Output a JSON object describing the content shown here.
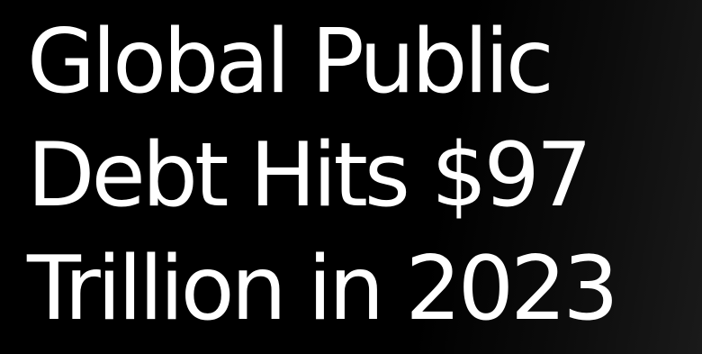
{
  "headline": {
    "lines": [
      "Global Public",
      "Debt Hits $97",
      "Trillion in 2023"
    ],
    "color": "#ffffff"
  },
  "background": {
    "color": "#000000"
  }
}
